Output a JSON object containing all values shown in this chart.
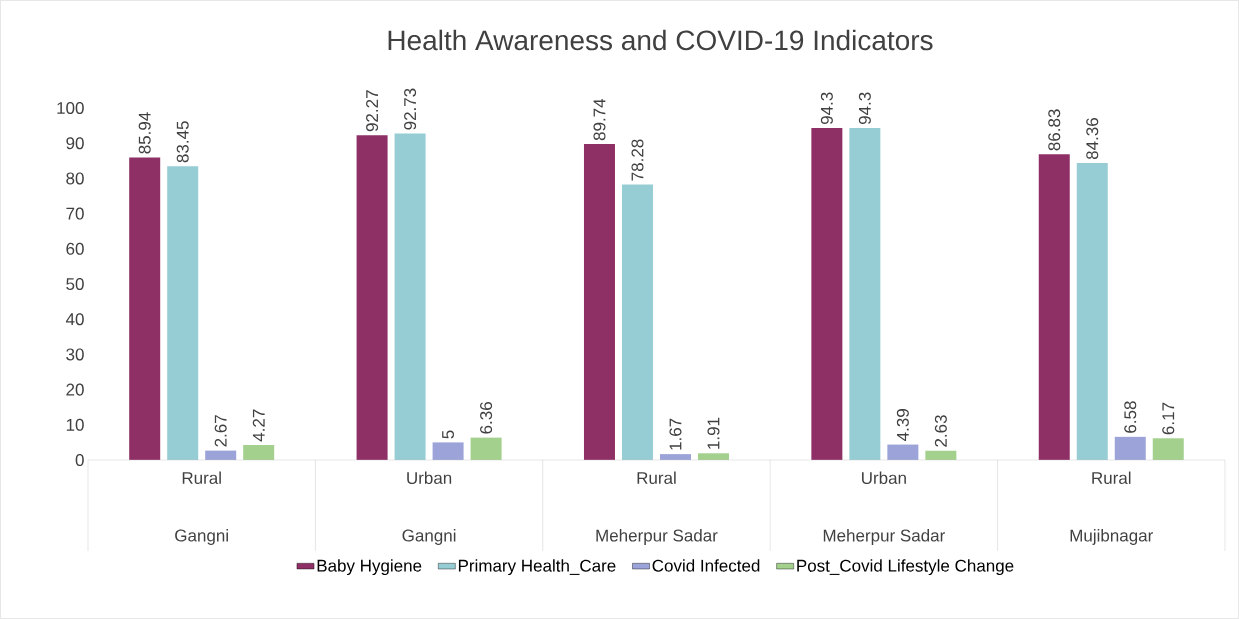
{
  "chart_data": {
    "type": "bar",
    "title": "Health Awareness and COVID-19 Indicators",
    "categories": [
      "Rural",
      "Urban",
      "Rural",
      "Urban",
      "Rural"
    ],
    "annotations": [
      "Gangni",
      "Gangni",
      "Meherpur Sadar",
      "Meherpur Sadar",
      "Mujibnagar"
    ],
    "series": [
      {
        "name": "Baby Hygiene",
        "color": "#8e3065",
        "values": [
          85.94,
          92.27,
          89.74,
          94.3,
          86.83
        ]
      },
      {
        "name": "Primary Health_Care",
        "color": "#96cdd4",
        "values": [
          83.45,
          92.73,
          78.28,
          94.3,
          84.36
        ]
      },
      {
        "name": "Covid Infected",
        "color": "#9ba3d8",
        "values": [
          2.67,
          5,
          1.67,
          4.39,
          6.58
        ]
      },
      {
        "name": "Post_Covid Lifestyle Change",
        "color": "#a3d08c",
        "values": [
          4.27,
          6.36,
          1.91,
          2.63,
          6.17
        ]
      }
    ],
    "ylim": [
      0,
      100
    ],
    "yticks": [
      0,
      10,
      20,
      30,
      40,
      50,
      60,
      70,
      80,
      90,
      100
    ],
    "data_labels": true,
    "grid": false,
    "legend": "bottom"
  }
}
